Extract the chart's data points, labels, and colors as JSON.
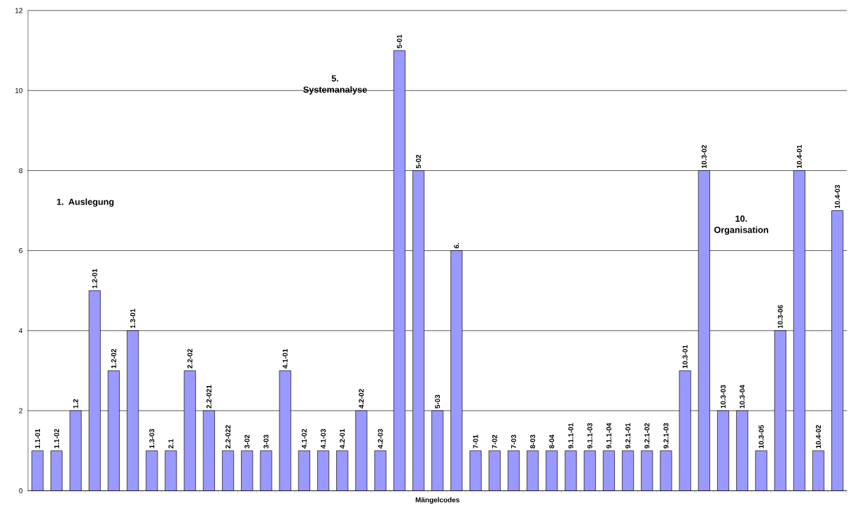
{
  "chart_data": {
    "type": "bar",
    "xlabel": "Mängelcodes",
    "categories": [
      "1.1-01",
      "1.1-02",
      "1.2",
      "1.2-01",
      "1.2-02",
      "1.3-01",
      "1.3-03",
      "2.1",
      "2.2-02",
      "2.2-021",
      "2.2-022",
      "3-02",
      "3-03",
      "4.1-01",
      "4.1-02",
      "4.1-03",
      "4.2-01",
      "4.2-02",
      "4.2-03",
      "5-01",
      "5-02",
      "5-03",
      "6.",
      "7-01",
      "7-02",
      "7-03",
      "8-03",
      "8-04",
      "9.1.1-01",
      "9.1.1-03",
      "9.1.1-04",
      "9.2.1-01",
      "9.2.1-02",
      "9.2.1-03",
      "10.3-01",
      "10.3-02",
      "10.3-03",
      "10.3-04",
      "10.3-05",
      "10.3-06",
      "10.4-01",
      "10.4-02",
      "10.4-03"
    ],
    "values": [
      1,
      1,
      2,
      5,
      3,
      4,
      1,
      1,
      3,
      2,
      1,
      1,
      1,
      3,
      1,
      1,
      1,
      2,
      1,
      11,
      8,
      2,
      6,
      1,
      1,
      1,
      1,
      1,
      1,
      1,
      1,
      1,
      1,
      1,
      3,
      8,
      2,
      2,
      1,
      4,
      8,
      1,
      7
    ],
    "color": "#9999ff",
    "ylim": [
      0,
      12
    ],
    "yticks": [
      0,
      2,
      4,
      6,
      8,
      10,
      12
    ],
    "grid": "y",
    "annotations": [
      "1. Auslegung",
      "5. Systemanalyse",
      "10. Organisation"
    ]
  }
}
